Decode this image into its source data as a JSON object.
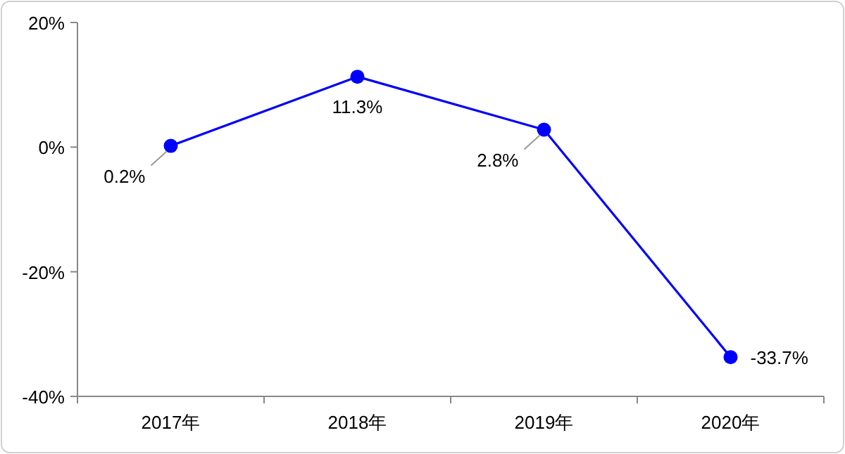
{
  "chart_data": {
    "type": "line",
    "categories": [
      "2017年",
      "2018年",
      "2019年",
      "2020年"
    ],
    "series": [
      {
        "color": "#0000ff",
        "values": [
          0.2,
          11.3,
          2.8,
          -33.7
        ],
        "value_labels": [
          "0.2%",
          "11.3%",
          "2.8%",
          "-33.7%"
        ]
      }
    ],
    "ylim": [
      -40,
      20
    ],
    "yticks": [
      {
        "value": -40,
        "label": "-40%"
      },
      {
        "value": -20,
        "label": "-20%"
      },
      {
        "value": 0,
        "label": "0%"
      },
      {
        "value": 20,
        "label": "20%"
      }
    ],
    "marker": "circle",
    "line_style": "solid",
    "grid": false
  }
}
